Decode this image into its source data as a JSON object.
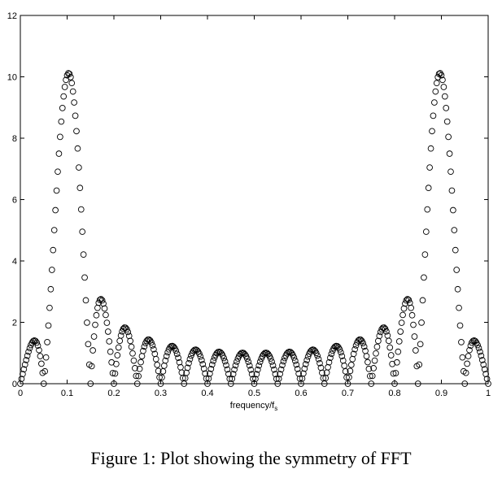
{
  "caption": "Figure 1: Plot showing the symmetry of FFT",
  "chart_data": {
    "type": "scatter",
    "marker": "open-circle",
    "marker_color": "#000000",
    "xlabel_main": "frequency/f",
    "xlabel_sub": "s",
    "ylabel": "",
    "title": "",
    "xlim": [
      0,
      1
    ],
    "ylim": [
      0,
      12
    ],
    "xticks": [
      0,
      0.1,
      0.2,
      0.3,
      0.4,
      0.5,
      0.6,
      0.7,
      0.8,
      0.9,
      1
    ],
    "xtick_labels": [
      "0",
      "0.1",
      "0.2",
      "0.3",
      "0.4",
      "0.5",
      "0.6",
      "0.7",
      "0.8",
      "0.9",
      "1"
    ],
    "yticks": [
      0,
      2,
      4,
      6,
      8,
      10,
      12
    ],
    "ytick_labels": [
      "0",
      "2",
      "4",
      "6",
      "8",
      "10",
      "12"
    ],
    "grid": false,
    "signal": {
      "components": [
        {
          "frequency": 0.1,
          "amplitude": 10.05
        },
        {
          "frequency": 0.9,
          "amplitude": 10.05
        }
      ],
      "window_length": 20,
      "n_points": 400
    },
    "series": [
      {
        "points": "sampled |DFT| of windowed sinusoid, x in [0,1], see signal"
      }
    ]
  }
}
